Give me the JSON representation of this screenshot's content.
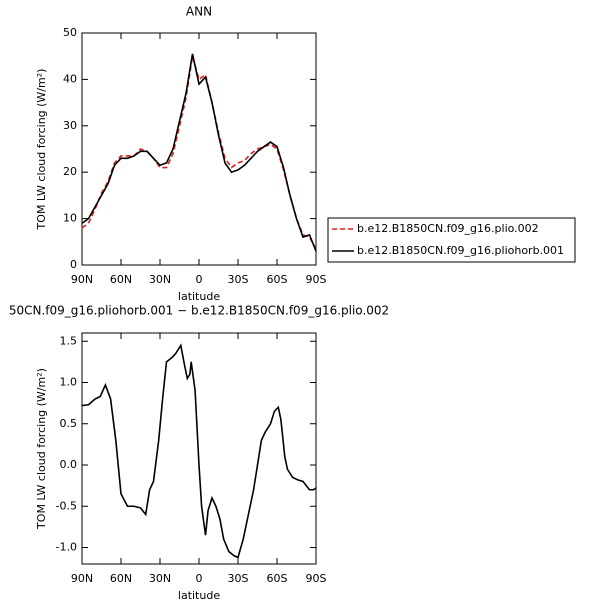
{
  "chart_data": [
    {
      "type": "line",
      "title": "ANN",
      "x_label": "latitude",
      "y_label": "TOM LW cloud forcing (W/m²)",
      "xlim": [
        90,
        -90
      ],
      "xticks": [
        {
          "value": 90,
          "label": "90N"
        },
        {
          "value": 60,
          "label": "60N"
        },
        {
          "value": 30,
          "label": "30N"
        },
        {
          "value": 0,
          "label": "0"
        },
        {
          "value": -30,
          "label": "30S"
        },
        {
          "value": -60,
          "label": "60S"
        },
        {
          "value": -90,
          "label": "90S"
        }
      ],
      "ylim": [
        0,
        50
      ],
      "yticks": [
        0,
        10,
        20,
        30,
        40,
        50
      ],
      "x": [
        90,
        85,
        80,
        75,
        70,
        65,
        60,
        55,
        50,
        45,
        40,
        35,
        30,
        25,
        20,
        15,
        10,
        5,
        0,
        -5,
        -10,
        -15,
        -20,
        -25,
        -30,
        -35,
        -40,
        -45,
        -50,
        -55,
        -60,
        -65,
        -70,
        -75,
        -80,
        -85,
        -90
      ],
      "series": [
        {
          "name": "b.e12.B1850CN.f09_g16.plio.002",
          "color": "#d62020",
          "dash": true,
          "values": [
            8,
            9,
            12,
            15.5,
            18,
            22,
            23.5,
            23.5,
            23.5,
            25,
            24.5,
            23,
            21,
            21,
            24,
            30,
            36,
            45,
            40,
            41,
            35,
            28.5,
            23,
            21,
            22,
            22.5,
            24,
            25,
            25.5,
            26,
            25,
            20.5,
            15,
            10,
            6.5,
            6,
            3.5
          ]
        },
        {
          "name": "b.e12.B1850CN.f09_g16.pliohorb.001",
          "color": "#000000",
          "dash": false,
          "values": [
            9,
            10,
            12.5,
            15,
            17.5,
            21.5,
            23,
            23,
            23.5,
            24.5,
            24.5,
            23,
            21.5,
            22,
            25,
            31,
            37,
            45.5,
            39,
            40.5,
            35,
            28,
            22,
            20,
            20.5,
            21.5,
            23,
            24.5,
            25.5,
            26.5,
            25.5,
            21,
            15,
            10,
            6,
            6.5,
            3
          ]
        }
      ]
    },
    {
      "type": "line",
      "title": "50CN.f09_g16.pliohorb.001 − b.e12.B1850CN.f09_g16.plio.002",
      "x_label": "latitude",
      "y_label": "TOM LW cloud forcing (W/m²)",
      "xlim": [
        90,
        -90
      ],
      "xticks": [
        {
          "value": 90,
          "label": "90N"
        },
        {
          "value": 60,
          "label": "60N"
        },
        {
          "value": 30,
          "label": "30N"
        },
        {
          "value": 0,
          "label": "0"
        },
        {
          "value": -30,
          "label": "30S"
        },
        {
          "value": -60,
          "label": "60S"
        },
        {
          "value": -90,
          "label": "90S"
        }
      ],
      "ylim": [
        -1.2,
        1.6
      ],
      "yticks": [
        {
          "value": -1,
          "label": "-1.0"
        },
        -0.5,
        {
          "value": 0,
          "label": "0.0"
        },
        0.5,
        {
          "value": 1,
          "label": "1.0"
        },
        1.5
      ],
      "x": [
        90,
        85,
        80,
        76,
        72,
        68,
        64,
        60,
        55,
        50,
        45,
        41,
        38,
        35,
        31,
        28,
        25,
        21,
        18,
        14,
        11,
        9,
        7,
        6,
        3,
        0,
        -2,
        -5,
        -7,
        -10,
        -13,
        -16,
        -19,
        -23,
        -27,
        -30,
        -34,
        -38,
        -42,
        -45,
        -48,
        -51,
        -55,
        -58,
        -61,
        -63,
        -66,
        -68,
        -72,
        -76,
        -80,
        -85,
        -88,
        -90
      ],
      "series": [
        {
          "color": "#000000",
          "dash": false,
          "values": [
            0.72,
            0.73,
            0.8,
            0.83,
            0.97,
            0.8,
            0.3,
            -0.35,
            -0.5,
            -0.5,
            -0.52,
            -0.6,
            -0.3,
            -0.2,
            0.3,
            0.8,
            1.25,
            1.3,
            1.35,
            1.45,
            1.2,
            1.05,
            1.1,
            1.25,
            0.9,
            0.0,
            -0.5,
            -0.85,
            -0.55,
            -0.4,
            -0.5,
            -0.65,
            -0.9,
            -1.05,
            -1.1,
            -1.12,
            -0.9,
            -0.6,
            -0.3,
            0.0,
            0.3,
            0.4,
            0.5,
            0.65,
            0.7,
            0.55,
            0.1,
            -0.05,
            -0.15,
            -0.18,
            -0.2,
            -0.3,
            -0.3,
            -0.28
          ]
        }
      ]
    }
  ]
}
